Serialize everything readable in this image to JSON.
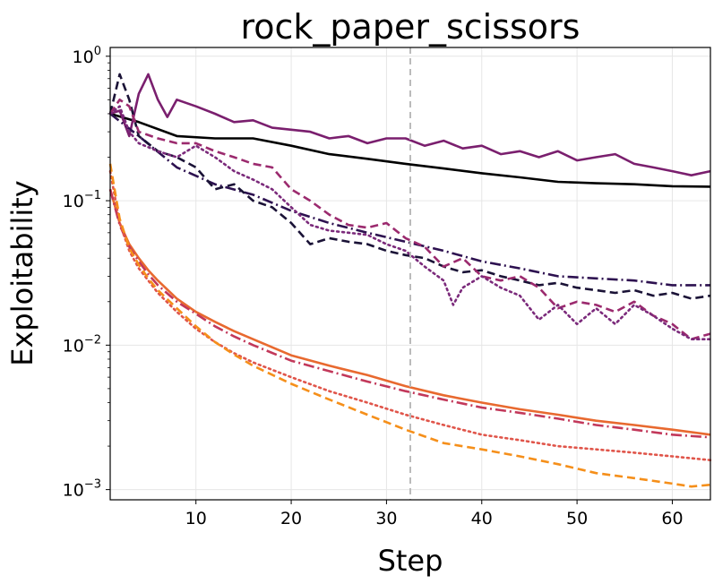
{
  "chart_data": {
    "type": "line",
    "title": "rock_paper_scissors",
    "xlabel": "Step",
    "ylabel": "Exploitability",
    "xlim": [
      1,
      64
    ],
    "ylim": [
      0.00085,
      1.15
    ],
    "yscale": "log",
    "grid": true,
    "x_ticks": [
      10,
      20,
      30,
      40,
      50,
      60
    ],
    "y_ticks": [
      {
        "value": 0.001,
        "base": "10",
        "exp": "−3"
      },
      {
        "value": 0.01,
        "base": "10",
        "exp": "−2"
      },
      {
        "value": 0.1,
        "base": "10",
        "exp": "−1"
      },
      {
        "value": 1,
        "base": "10",
        "exp": "0"
      }
    ],
    "vline": {
      "x": 32.5,
      "color": "#bbbbbb",
      "dash": "dashed"
    },
    "series": [
      {
        "color": "#000000",
        "dash": "solid",
        "x": [
          1,
          4,
          8,
          12,
          16,
          20,
          24,
          28,
          32,
          36,
          40,
          44,
          48,
          52,
          56,
          60,
          64
        ],
        "y": [
          0.4,
          0.35,
          0.28,
          0.27,
          0.27,
          0.24,
          0.21,
          0.195,
          0.18,
          0.167,
          0.155,
          0.145,
          0.135,
          0.132,
          0.13,
          0.126,
          0.125
        ]
      },
      {
        "color": "#7a1f6e",
        "dash": "solid",
        "x": [
          1,
          2,
          3,
          4,
          5,
          6,
          7,
          8,
          10,
          12,
          14,
          16,
          18,
          20,
          22,
          24,
          26,
          28,
          30,
          32,
          34,
          36,
          38,
          40,
          42,
          44,
          46,
          48,
          50,
          52,
          54,
          56,
          58,
          60,
          62,
          64
        ],
        "y": [
          0.4,
          0.42,
          0.28,
          0.55,
          0.75,
          0.5,
          0.38,
          0.5,
          0.45,
          0.4,
          0.35,
          0.36,
          0.32,
          0.31,
          0.3,
          0.27,
          0.28,
          0.25,
          0.27,
          0.27,
          0.24,
          0.26,
          0.23,
          0.24,
          0.21,
          0.22,
          0.2,
          0.22,
          0.19,
          0.2,
          0.21,
          0.18,
          0.17,
          0.16,
          0.15,
          0.16
        ]
      },
      {
        "color": "#2d1150",
        "dash": "dashdot",
        "x": [
          1,
          4,
          8,
          12,
          16,
          20,
          24,
          28,
          32,
          36,
          40,
          44,
          48,
          52,
          56,
          60,
          64
        ],
        "y": [
          0.4,
          0.28,
          0.17,
          0.13,
          0.11,
          0.085,
          0.07,
          0.06,
          0.052,
          0.045,
          0.038,
          0.034,
          0.03,
          0.029,
          0.028,
          0.026,
          0.026
        ]
      },
      {
        "color": "#1a1236",
        "dash": "dashed",
        "x": [
          1,
          2,
          3,
          4,
          6,
          8,
          10,
          12,
          14,
          16,
          18,
          20,
          22,
          24,
          26,
          28,
          30,
          32,
          34,
          36,
          38,
          40,
          42,
          44,
          46,
          48,
          50,
          52,
          54,
          56,
          58,
          60,
          62,
          64
        ],
        "y": [
          0.4,
          0.75,
          0.5,
          0.28,
          0.22,
          0.2,
          0.17,
          0.12,
          0.13,
          0.1,
          0.09,
          0.07,
          0.05,
          0.055,
          0.052,
          0.05,
          0.045,
          0.042,
          0.04,
          0.035,
          0.032,
          0.033,
          0.03,
          0.028,
          0.026,
          0.027,
          0.025,
          0.024,
          0.023,
          0.024,
          0.022,
          0.023,
          0.021,
          0.022
        ]
      },
      {
        "color": "#9b2a6e",
        "dash": "dashed",
        "x": [
          1,
          2,
          3,
          4,
          6,
          8,
          10,
          12,
          14,
          16,
          18,
          20,
          22,
          24,
          26,
          28,
          30,
          32,
          34,
          36,
          38,
          40,
          42,
          44,
          46,
          48,
          50,
          52,
          54,
          56,
          58,
          60,
          62,
          64
        ],
        "y": [
          0.4,
          0.5,
          0.45,
          0.3,
          0.27,
          0.25,
          0.25,
          0.22,
          0.2,
          0.18,
          0.17,
          0.12,
          0.1,
          0.08,
          0.068,
          0.065,
          0.07,
          0.055,
          0.048,
          0.035,
          0.04,
          0.03,
          0.028,
          0.03,
          0.025,
          0.018,
          0.02,
          0.019,
          0.017,
          0.02,
          0.016,
          0.014,
          0.011,
          0.012
        ]
      },
      {
        "color": "#7b2a7b",
        "dash": "dotted",
        "x": [
          1,
          2,
          3,
          4,
          6,
          8,
          10,
          12,
          14,
          16,
          18,
          20,
          22,
          24,
          26,
          28,
          30,
          32,
          34,
          36,
          37,
          38,
          40,
          42,
          44,
          46,
          48,
          50,
          52,
          54,
          56,
          58,
          60,
          62,
          64
        ],
        "y": [
          0.4,
          0.45,
          0.3,
          0.25,
          0.22,
          0.2,
          0.24,
          0.2,
          0.16,
          0.14,
          0.12,
          0.09,
          0.068,
          0.062,
          0.06,
          0.058,
          0.05,
          0.045,
          0.035,
          0.028,
          0.019,
          0.025,
          0.03,
          0.025,
          0.022,
          0.015,
          0.019,
          0.014,
          0.018,
          0.014,
          0.019,
          0.016,
          0.013,
          0.011,
          0.011
        ]
      },
      {
        "color": "#e8692f",
        "dash": "solid",
        "x": [
          1,
          2,
          3,
          4,
          5,
          6,
          8,
          10,
          12,
          14,
          16,
          20,
          24,
          28,
          32,
          36,
          40,
          44,
          48,
          52,
          56,
          60,
          64
        ],
        "y": [
          0.12,
          0.07,
          0.05,
          0.04,
          0.033,
          0.028,
          0.021,
          0.017,
          0.0145,
          0.0125,
          0.011,
          0.0085,
          0.0072,
          0.0062,
          0.0052,
          0.0045,
          0.004,
          0.0036,
          0.0033,
          0.003,
          0.0028,
          0.0026,
          0.0024
        ]
      },
      {
        "color": "#c2385a",
        "dash": "dashdot",
        "x": [
          1,
          2,
          3,
          4,
          5,
          6,
          8,
          10,
          12,
          14,
          16,
          20,
          24,
          28,
          32,
          36,
          40,
          44,
          48,
          52,
          56,
          60,
          64
        ],
        "y": [
          0.12,
          0.068,
          0.048,
          0.038,
          0.031,
          0.026,
          0.02,
          0.0165,
          0.0135,
          0.0115,
          0.01,
          0.0078,
          0.0066,
          0.0056,
          0.0048,
          0.0042,
          0.0037,
          0.0034,
          0.0031,
          0.0028,
          0.0026,
          0.0024,
          0.0023
        ]
      },
      {
        "color": "#e0554a",
        "dash": "dotted",
        "x": [
          1,
          2,
          3,
          4,
          5,
          6,
          8,
          10,
          12,
          14,
          16,
          20,
          24,
          28,
          32,
          36,
          40,
          44,
          48,
          52,
          56,
          60,
          64
        ],
        "y": [
          0.16,
          0.07,
          0.045,
          0.034,
          0.028,
          0.023,
          0.017,
          0.013,
          0.0105,
          0.0088,
          0.0076,
          0.006,
          0.0048,
          0.004,
          0.0033,
          0.0028,
          0.0024,
          0.0022,
          0.002,
          0.0019,
          0.0018,
          0.0017,
          0.0016
        ]
      },
      {
        "color": "#f58f1a",
        "dash": "dashed",
        "x": [
          1,
          2,
          3,
          4,
          5,
          6,
          8,
          10,
          12,
          14,
          16,
          20,
          24,
          28,
          32,
          36,
          40,
          44,
          48,
          52,
          56,
          60,
          62,
          64
        ],
        "y": [
          0.18,
          0.075,
          0.047,
          0.036,
          0.029,
          0.024,
          0.018,
          0.0135,
          0.0105,
          0.0086,
          0.0072,
          0.0054,
          0.0042,
          0.0033,
          0.0026,
          0.0021,
          0.0019,
          0.0017,
          0.0015,
          0.0013,
          0.0012,
          0.0011,
          0.00105,
          0.00108
        ]
      }
    ]
  }
}
